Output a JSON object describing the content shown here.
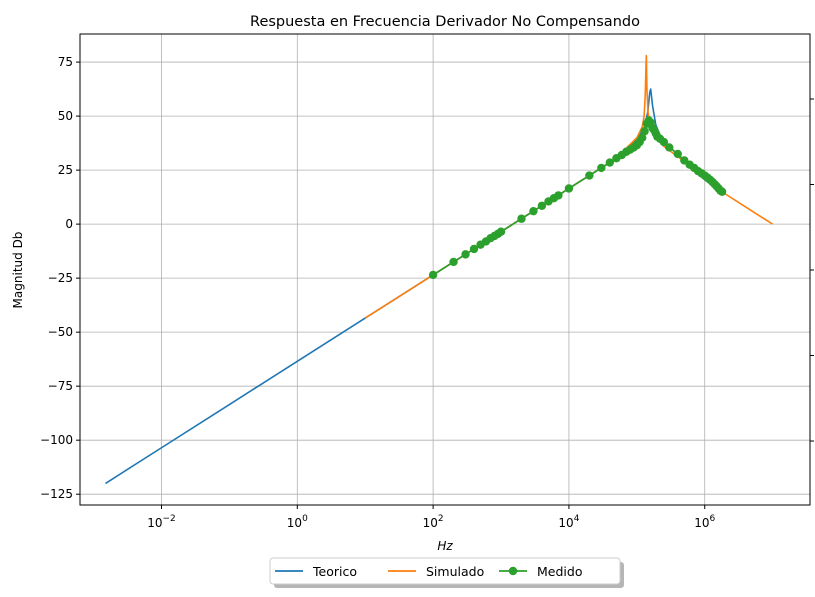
{
  "chart_data": {
    "type": "line",
    "title": "Respuesta en Frecuencia Derivador No Compensando",
    "xlabel": "Hz",
    "ylabel": "Magnitud Db",
    "xscale": "log",
    "xlim_log10": [
      -3.2,
      7.55
    ],
    "ylim": [
      -130,
      88
    ],
    "x_tick_exponents": [
      -2,
      0,
      2,
      4,
      6
    ],
    "x_tick_base": "10",
    "y_ticks": [
      75,
      50,
      25,
      0,
      -25,
      -50,
      -75,
      -100,
      -125
    ],
    "y_tick_labels": [
      "75",
      "50",
      "25",
      "0",
      "−25",
      "−50",
      "−75",
      "−100",
      "−125"
    ],
    "grid": true,
    "legend_position": "bottom-center",
    "series": [
      {
        "name": "Teorico",
        "color": "#1f77b4",
        "marker": "none",
        "x": [
          0.0015,
          0.01,
          0.1,
          1,
          10,
          100,
          1000,
          10000,
          50000,
          100000,
          130000,
          145000,
          155000,
          160000,
          170000,
          190000,
          220000,
          300000,
          500000,
          1000000,
          1800000
        ],
        "y": [
          -120,
          -103.5,
          -83.5,
          -63.5,
          -43.5,
          -23.5,
          -3.5,
          16.5,
          30.5,
          39,
          45,
          52,
          61,
          62.5,
          55,
          46,
          41,
          36,
          29,
          20.5,
          15
        ]
      },
      {
        "name": "Simulado",
        "color": "#ff7f0e",
        "marker": "none",
        "x": [
          10,
          100,
          1000,
          10000,
          50000,
          100000,
          120000,
          128000,
          133000,
          136000,
          138000,
          141000,
          146000,
          155000,
          180000,
          250000,
          500000,
          1000000,
          2000000,
          5000000,
          10000000
        ],
        "y": [
          -43.5,
          -23.5,
          -3.5,
          16.5,
          30.5,
          40,
          45,
          50,
          60,
          72,
          78,
          62,
          52,
          46,
          41,
          36,
          29,
          22,
          14,
          6,
          0
        ]
      },
      {
        "name": "Medido",
        "color": "#2ca02c",
        "marker": "circle",
        "x": [
          100,
          200,
          300,
          400,
          500,
          600,
          700,
          800,
          900,
          1000,
          2000,
          3000,
          4000,
          5000,
          6000,
          7000,
          10000,
          20000,
          30000,
          40000,
          50000,
          60000,
          70000,
          80000,
          90000,
          100000,
          110000,
          120000,
          130000,
          140000,
          150000,
          160000,
          170000,
          180000,
          190000,
          200000,
          220000,
          250000,
          300000,
          400000,
          500000,
          600000,
          700000,
          800000,
          900000,
          1000000,
          1100000,
          1200000,
          1300000,
          1400000,
          1500000,
          1600000,
          1700000,
          1800000
        ],
        "y": [
          -23.5,
          -17.5,
          -14,
          -11.5,
          -9.5,
          -8,
          -6.5,
          -5.5,
          -4.5,
          -3.5,
          2.5,
          6,
          8.5,
          10.5,
          12,
          13.3,
          16.5,
          22.5,
          26,
          28.5,
          30.5,
          32,
          33.5,
          34.5,
          35.5,
          36.5,
          38,
          40,
          43,
          46.5,
          48,
          47,
          44.5,
          43.5,
          42,
          40.5,
          39.5,
          38,
          35.5,
          32.5,
          29.5,
          27.5,
          26,
          24.5,
          23.5,
          22.5,
          21.5,
          20.5,
          19.5,
          18.5,
          17.5,
          16.5,
          15.5,
          15
        ]
      }
    ]
  }
}
